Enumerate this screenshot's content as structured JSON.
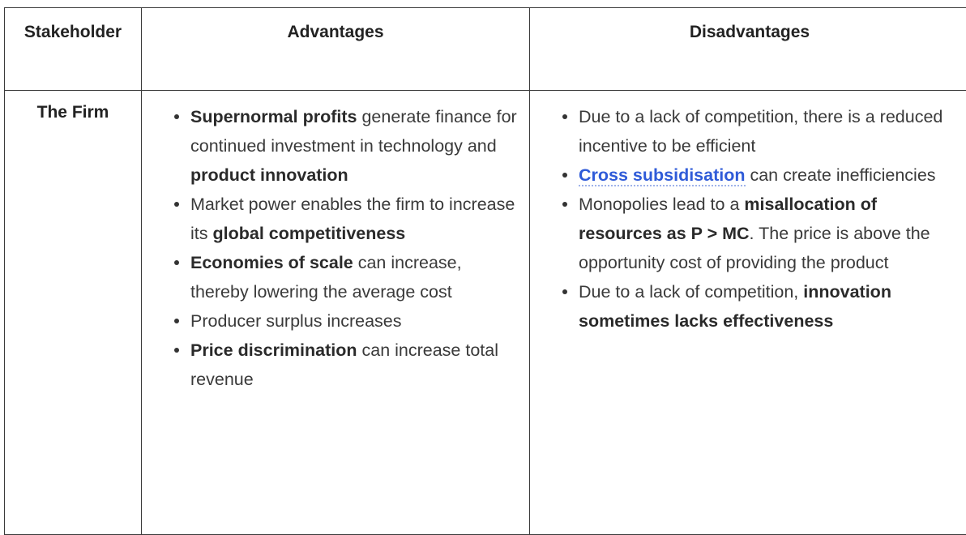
{
  "headers": {
    "stakeholder": "Stakeholder",
    "advantages": "Advantages",
    "disadvantages": "Disadvantages"
  },
  "row": {
    "stakeholder": "The Firm",
    "advantages": [
      {
        "bold1": "Supernormal profits",
        "text1": " generate finance for continued investment in technology and ",
        "bold2": "product innovation",
        "text2": ""
      },
      {
        "bold1": "",
        "text1": "Market power enables the firm to increase its ",
        "bold2": "global competitiveness",
        "text2": ""
      },
      {
        "bold1": "Economies of scale",
        "text1": " can increase, thereby lowering the average cost",
        "bold2": "",
        "text2": ""
      },
      {
        "bold1": "",
        "text1": "Producer surplus increases",
        "bold2": "",
        "text2": ""
      },
      {
        "bold1": "Price discrimination",
        "text1": " can increase total revenue",
        "bold2": "",
        "text2": ""
      }
    ],
    "disadvantages": {
      "item1": "Due to a lack of competition, there is a reduced incentive to be efficient",
      "item2_link": "Cross subsidisation",
      "item2_text": " can create inefficiencies",
      "item3_text1": "Monopolies lead to a ",
      "item3_bold": "misallocation of resources as P > MC",
      "item3_text2": ". The price is above the opportunity cost of providing the product",
      "item4_text": "Due to a lack of competition, ",
      "item4_bold": "innovation sometimes lacks effectiveness"
    }
  }
}
